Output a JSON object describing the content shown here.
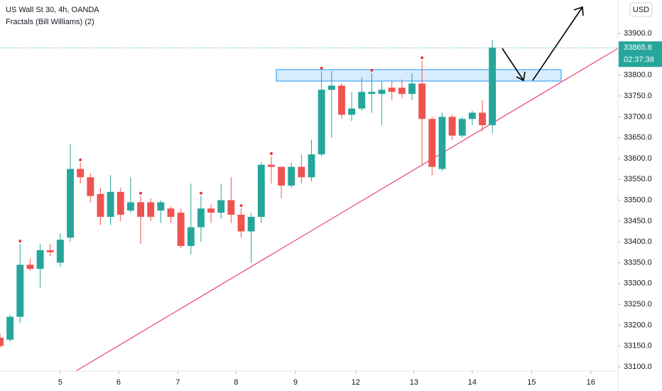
{
  "chart_data": {
    "type": "candlestick",
    "title": "US Wall St 30, 4h, OANDA",
    "subtitle": "Fractals (Bill Williams) (2)",
    "currency": "USD",
    "up_color": "#26a69a",
    "down_color": "#ef5350",
    "fractal_color": "#e53935",
    "open": [
      33170,
      33165,
      33220,
      33345,
      33335,
      33380,
      33350,
      33410,
      33575,
      33555,
      33515,
      33460,
      33520,
      33475,
      33495,
      33495,
      33475,
      33480,
      33470,
      33390,
      33435,
      33480,
      33470,
      33500,
      33465,
      33425,
      33460,
      33585,
      33580,
      33535,
      33580,
      33555,
      33610,
      33765,
      33775,
      33705,
      33720,
      33755,
      33755,
      33770,
      33770,
      33755,
      33780,
      33695,
      33575,
      33700,
      33655,
      33695,
      33710,
      33680
    ],
    "high": [
      33180,
      33225,
      33395,
      33360,
      33395,
      33395,
      33420,
      33635,
      33590,
      33565,
      33530,
      33560,
      33530,
      33555,
      33510,
      33505,
      33500,
      33485,
      33480,
      33540,
      33510,
      33490,
      33540,
      33555,
      33480,
      33470,
      33590,
      33605,
      33580,
      33590,
      33610,
      33645,
      33810,
      33810,
      33780,
      33760,
      33795,
      33805,
      33785,
      33785,
      33790,
      33805,
      33835,
      33700,
      33710,
      33705,
      33700,
      33715,
      33740,
      33885
    ],
    "low": [
      33145,
      33160,
      33205,
      33330,
      33290,
      33365,
      33340,
      33400,
      33540,
      33495,
      33440,
      33440,
      33450,
      33470,
      33395,
      33450,
      33445,
      33445,
      33385,
      33370,
      33400,
      33445,
      33455,
      33445,
      33410,
      33350,
      33445,
      33540,
      33505,
      33530,
      33540,
      33545,
      33605,
      33650,
      33695,
      33690,
      33715,
      33710,
      33680,
      33740,
      33745,
      33740,
      33585,
      33560,
      33570,
      33645,
      33650,
      33680,
      33665,
      33660
    ],
    "close": [
      33150,
      33220,
      33345,
      33335,
      33380,
      33375,
      33405,
      33575,
      33555,
      33510,
      33460,
      33520,
      33465,
      33495,
      33460,
      33460,
      33495,
      33460,
      33390,
      33435,
      33480,
      33470,
      33500,
      33465,
      33425,
      33460,
      33585,
      33580,
      33535,
      33580,
      33555,
      33610,
      33765,
      33775,
      33705,
      33720,
      33760,
      33760,
      33765,
      33760,
      33755,
      33780,
      33695,
      33580,
      33700,
      33655,
      33695,
      33710,
      33680,
      33865.8
    ],
    "fractals_up": [
      2,
      8,
      14,
      20,
      24,
      27,
      32,
      37,
      42
    ],
    "last_price": 33865.8,
    "countdown": "02:37:38",
    "xlim": [
      0,
      61.5
    ],
    "xticks": [
      {
        "value": 6,
        "label": "5"
      },
      {
        "value": 11.8,
        "label": "6"
      },
      {
        "value": 17.7,
        "label": "7"
      },
      {
        "value": 23.5,
        "label": "8"
      },
      {
        "value": 29.4,
        "label": "9"
      },
      {
        "value": 35.4,
        "label": "12"
      },
      {
        "value": 41.2,
        "label": "13"
      },
      {
        "value": 47,
        "label": "14"
      },
      {
        "value": 52.9,
        "label": "15"
      },
      {
        "value": 58.8,
        "label": "16"
      }
    ],
    "ylim": [
      33089.7,
      33980.5
    ],
    "yticks": [
      {
        "value": 33100,
        "label": "33100.0"
      },
      {
        "value": 33150,
        "label": "33150.0"
      },
      {
        "value": 33200,
        "label": "33200.0"
      },
      {
        "value": 33250,
        "label": "33250.0"
      },
      {
        "value": 33300,
        "label": "33300.0"
      },
      {
        "value": 33350,
        "label": "33350.0"
      },
      {
        "value": 33400,
        "label": "33400.0"
      },
      {
        "value": 33450,
        "label": "33450.0"
      },
      {
        "value": 33500,
        "label": "33500.0"
      },
      {
        "value": 33550,
        "label": "33550.0"
      },
      {
        "value": 33600,
        "label": "33600.0"
      },
      {
        "value": 33650,
        "label": "33650.0"
      },
      {
        "value": 33700,
        "label": "33700.0"
      },
      {
        "value": 33750,
        "label": "33750.0"
      },
      {
        "value": 33800,
        "label": "33800.0"
      },
      {
        "value": 33850,
        "label": "33850.0"
      },
      {
        "value": 33900,
        "label": "33900.0"
      }
    ]
  }
}
